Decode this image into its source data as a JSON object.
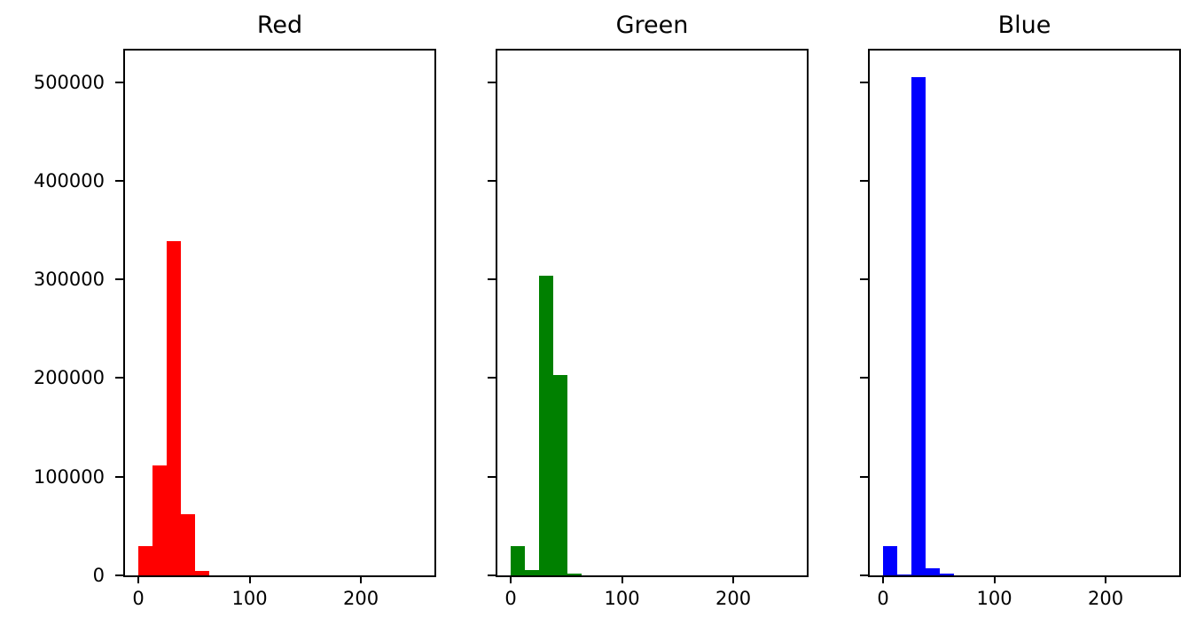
{
  "chart_data": {
    "type": "bar",
    "subtype": "histogram",
    "layout": "1x3-subplots-shared-y",
    "grid": false,
    "xlim": [
      -12,
      266
    ],
    "ylim": [
      0,
      531900
    ],
    "xticks": [
      0,
      100,
      200
    ],
    "xtick_labels": [
      "0",
      "100",
      "200"
    ],
    "yticks": [
      0,
      100000,
      200000,
      300000,
      400000,
      500000
    ],
    "ytick_labels": [
      "0",
      "100000",
      "200000",
      "300000",
      "400000",
      "500000"
    ],
    "bin_edges": [
      0,
      12.8,
      25.6,
      38.4,
      51.2,
      64.0
    ],
    "subplots": [
      {
        "title": "Red",
        "color": "#ff0000",
        "counts": [
          30000,
          111000,
          339000,
          62000,
          4500
        ]
      },
      {
        "title": "Green",
        "color": "#008000",
        "counts": [
          30000,
          5500,
          304000,
          203000,
          2200
        ]
      },
      {
        "title": "Blue",
        "color": "#0000ff",
        "counts": [
          30000,
          1000,
          505000,
          7500,
          1500
        ]
      }
    ]
  }
}
